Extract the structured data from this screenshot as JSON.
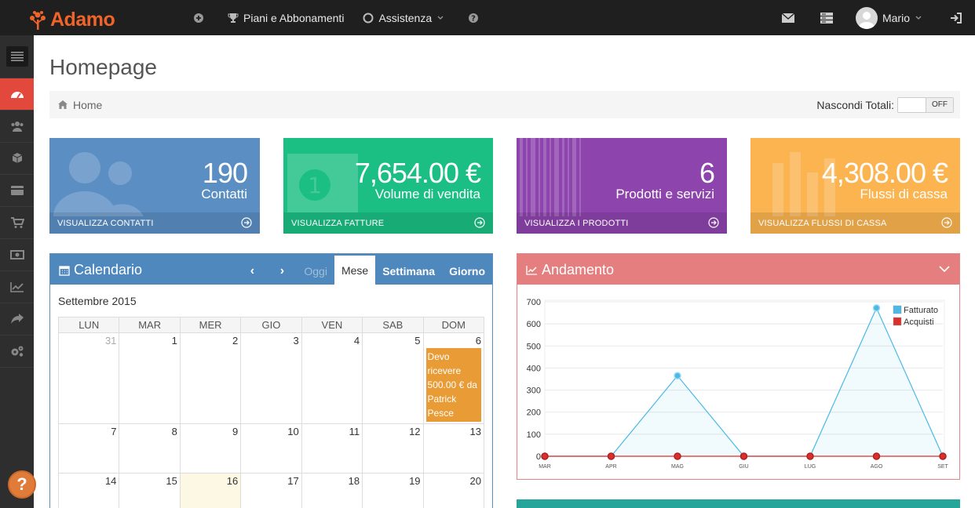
{
  "app": {
    "logo": "Adamo"
  },
  "topnav": {
    "plus_label": "",
    "plans_label": "Piani e Abbonamenti",
    "support_label": "Assistenza",
    "help_label": ""
  },
  "user": {
    "name": "Mario"
  },
  "sidebar": {
    "items": [
      "dashboard-icon",
      "users-icon",
      "cube-icon",
      "credit-card-icon",
      "cart-icon",
      "money-icon",
      "line-chart-icon",
      "share-icon",
      "cogs-icon"
    ],
    "active_index": 0
  },
  "page": {
    "title": "Homepage"
  },
  "breadcrumb": {
    "home": "Home"
  },
  "hide_totals": {
    "label": "Nascondi Totali:",
    "state": "OFF"
  },
  "stats": [
    {
      "value": "190",
      "label": "Contatti",
      "link": "VISUALIZZA CONTATTI",
      "color": "#5b8fc4"
    },
    {
      "value": "7,654.00 €",
      "label": "Volume di vendita",
      "link": "VISUALIZZA FATTURE",
      "color": "#1bbf83"
    },
    {
      "value": "6",
      "label": "Prodotti e servizi",
      "link": "VISUALIZZA I PRODOTTI",
      "color": "#8e44ad"
    },
    {
      "value": "4,308.00 €",
      "label": "Flussi di cassa",
      "link": "VISUALIZZA FLUSSI DI CASSA",
      "color": "#fbb450"
    }
  ],
  "calendar": {
    "title": "Calendario",
    "today_btn": "Oggi",
    "views": [
      "Mese",
      "Settimana",
      "Giorno"
    ],
    "active_view": "Mese",
    "month": "Settembre 2015",
    "weekdays": [
      "LUN",
      "MAR",
      "MER",
      "GIO",
      "VEN",
      "SAB",
      "DOM"
    ],
    "weeks": [
      [
        "31",
        "1",
        "2",
        "3",
        "4",
        "5",
        "6"
      ],
      [
        "7",
        "8",
        "9",
        "10",
        "11",
        "12",
        "13"
      ],
      [
        "14",
        "15",
        "16",
        "17",
        "18",
        "19",
        "20"
      ]
    ],
    "event": {
      "text": "Devo ricevere 500.00 € da Patrick Pesce",
      "day": "6"
    },
    "today": "16"
  },
  "andamento": {
    "title": "Andamento"
  },
  "chart_data": {
    "type": "line",
    "title": "",
    "x": [
      "MAR",
      "APR",
      "MAG",
      "GIU",
      "LUG",
      "AGO",
      "SET"
    ],
    "series": [
      {
        "name": "Fatturato",
        "values": [
          0,
          0,
          365,
          0,
          0,
          672,
          0
        ],
        "color": "#4ab9e6"
      },
      {
        "name": "Acquisti",
        "values": [
          0,
          0,
          0,
          0,
          0,
          0,
          0
        ],
        "color": "#d9302b"
      }
    ],
    "ylim": [
      0,
      700
    ],
    "yticks": [
      0,
      100,
      200,
      300,
      400,
      500,
      600,
      700
    ],
    "grid": true,
    "legend": "top-right"
  }
}
